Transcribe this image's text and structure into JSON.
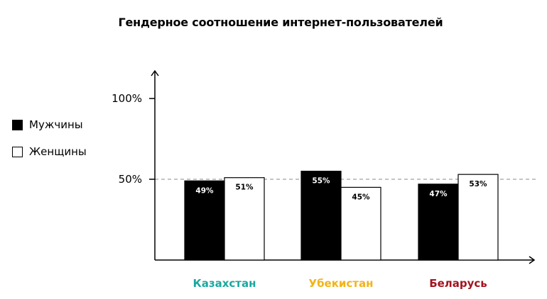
{
  "chart_data": {
    "type": "bar",
    "title": "Гендерное соотношение интернет-пользователей",
    "categories": [
      "Казахстан",
      "Убекистан",
      "Беларусь"
    ],
    "category_colors": [
      "#1aa8a0",
      "#f2b418",
      "#a3131f"
    ],
    "series": [
      {
        "name": "Мужчины",
        "values": [
          49,
          55,
          47
        ],
        "labels": [
          "49%",
          "55%",
          "47%"
        ],
        "fill": "#000000"
      },
      {
        "name": "Женщины",
        "values": [
          51,
          45,
          53
        ],
        "labels": [
          "51%",
          "45%",
          "53%"
        ],
        "fill": "#ffffff"
      }
    ],
    "y_ticks": [
      {
        "value": 50,
        "label": "50%"
      },
      {
        "value": 100,
        "label": "100%"
      }
    ],
    "reference_line": 50,
    "ylim": [
      0,
      100
    ],
    "grid": false,
    "legend_position": "left"
  }
}
